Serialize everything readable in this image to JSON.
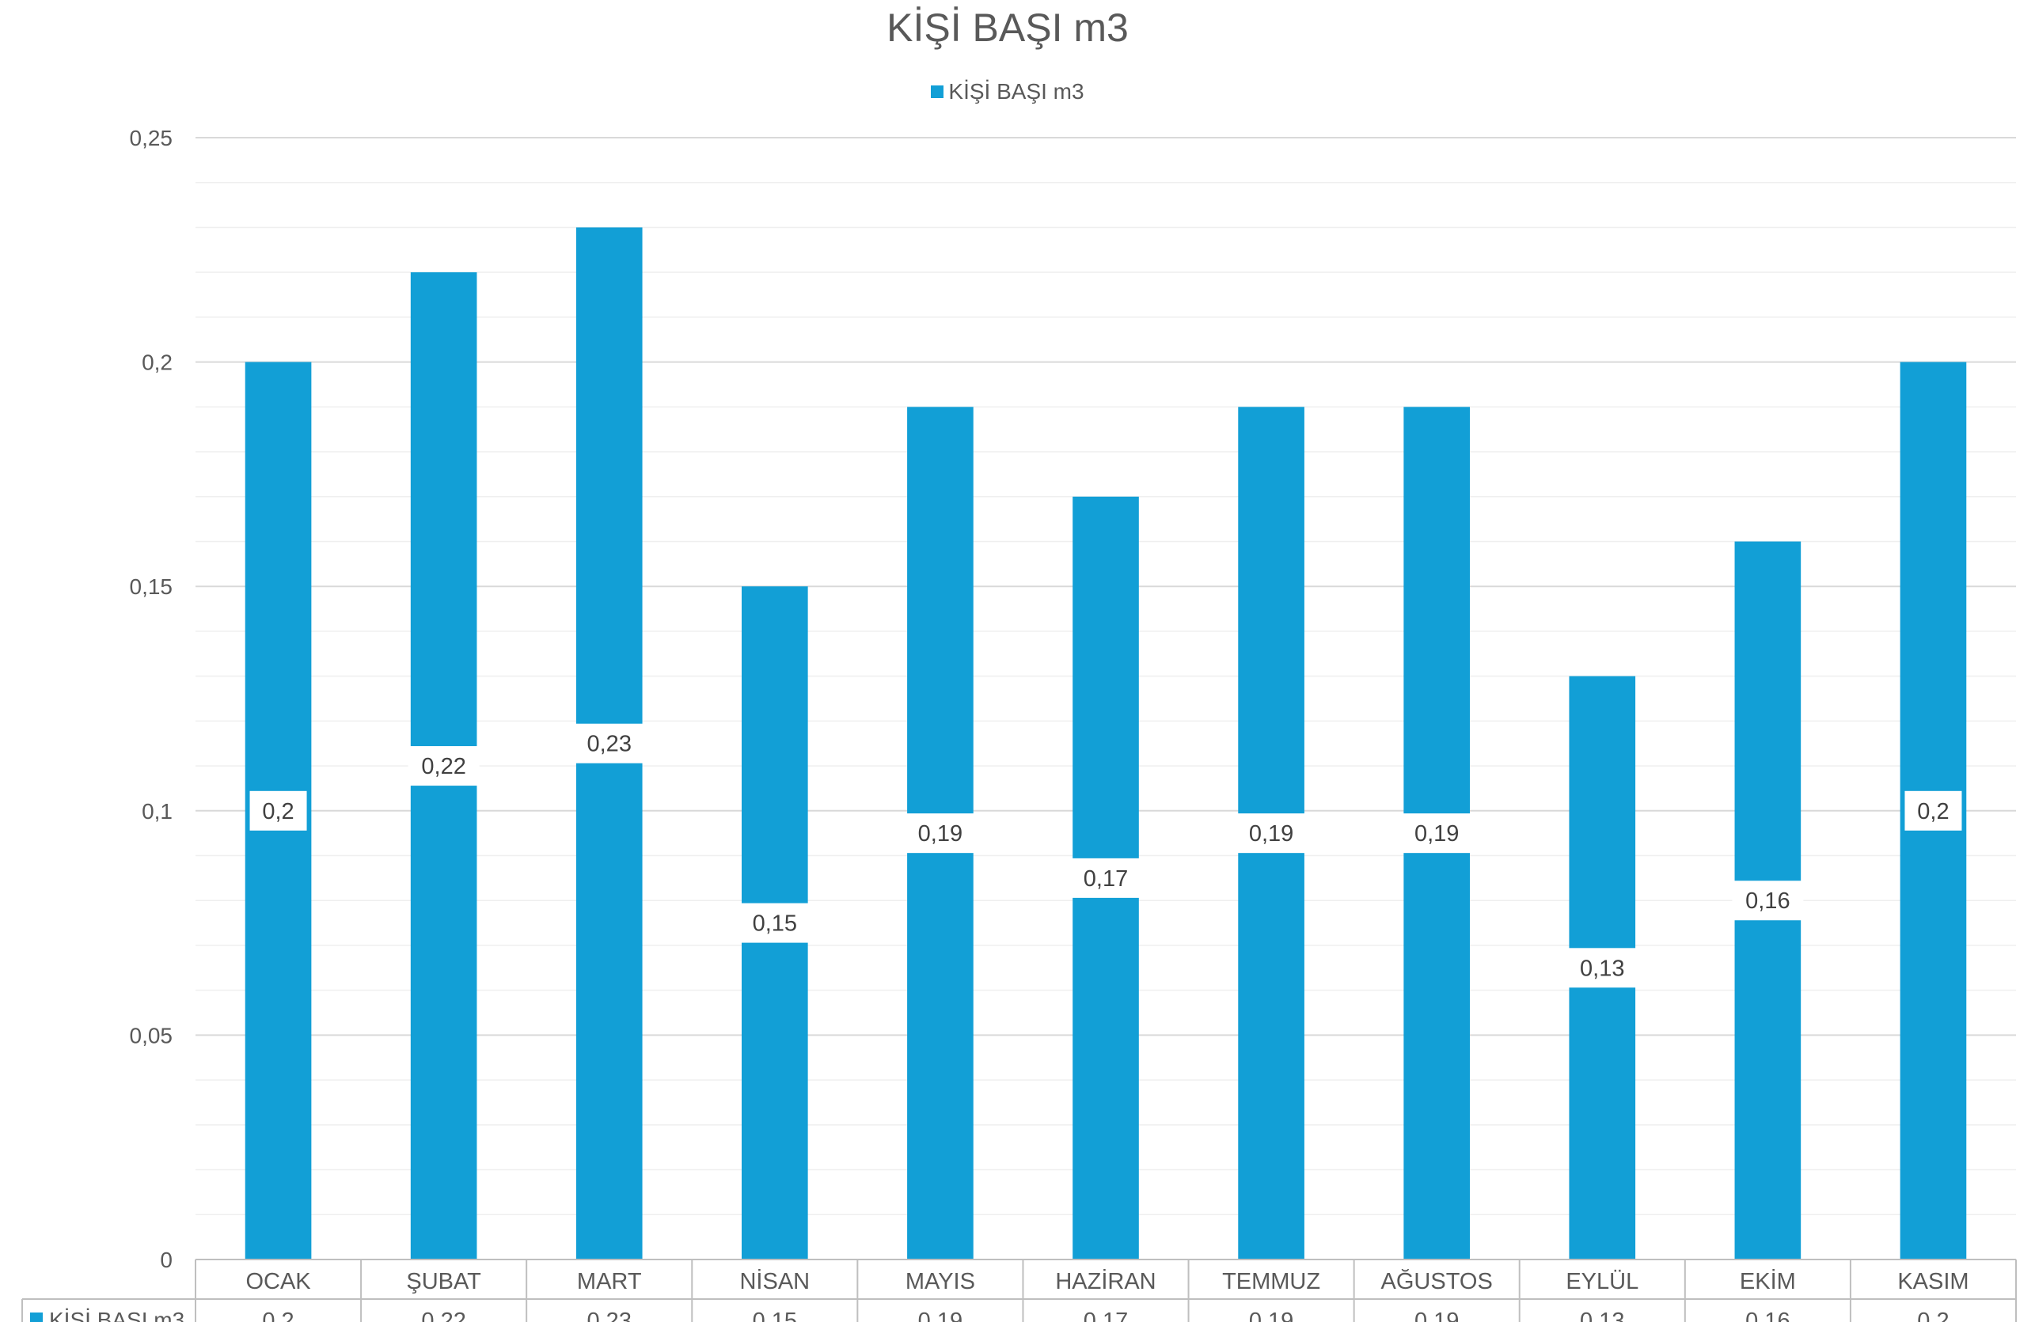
{
  "chart_data": {
    "type": "bar",
    "title": "KİŞİ BAŞI m3",
    "legend": {
      "position": "top",
      "entries": [
        "KİŞİ BAŞI m3"
      ]
    },
    "categories": [
      "OCAK",
      "ŞUBAT",
      "MART",
      "NİSAN",
      "MAYIS",
      "HAZİRAN",
      "TEMMUZ",
      "AĞUSTOS",
      "EYLÜL",
      "EKİM",
      "KASIM"
    ],
    "series": [
      {
        "name": "KİŞİ BAŞI m3",
        "values": [
          0.2,
          0.22,
          0.23,
          0.15,
          0.19,
          0.17,
          0.19,
          0.19,
          0.13,
          0.16,
          0.2
        ],
        "labels": [
          "0,2",
          "0,22",
          "0,23",
          "0,15",
          "0,19",
          "0,17",
          "0,19",
          "0,19",
          "0,13",
          "0,16",
          "0,2"
        ],
        "color": "#129fd6"
      }
    ],
    "y_ticks": [
      {
        "value": 0,
        "label": "0"
      },
      {
        "value": 0.05,
        "label": "0,05"
      },
      {
        "value": 0.1,
        "label": "0,1"
      },
      {
        "value": 0.15,
        "label": "0,15"
      },
      {
        "value": 0.2,
        "label": "0,2"
      },
      {
        "value": 0.25,
        "label": "0,25"
      }
    ],
    "ylim": [
      0,
      0.25
    ],
    "minor_gridlines": true,
    "data_table": true,
    "xlabel": "",
    "ylabel": ""
  }
}
